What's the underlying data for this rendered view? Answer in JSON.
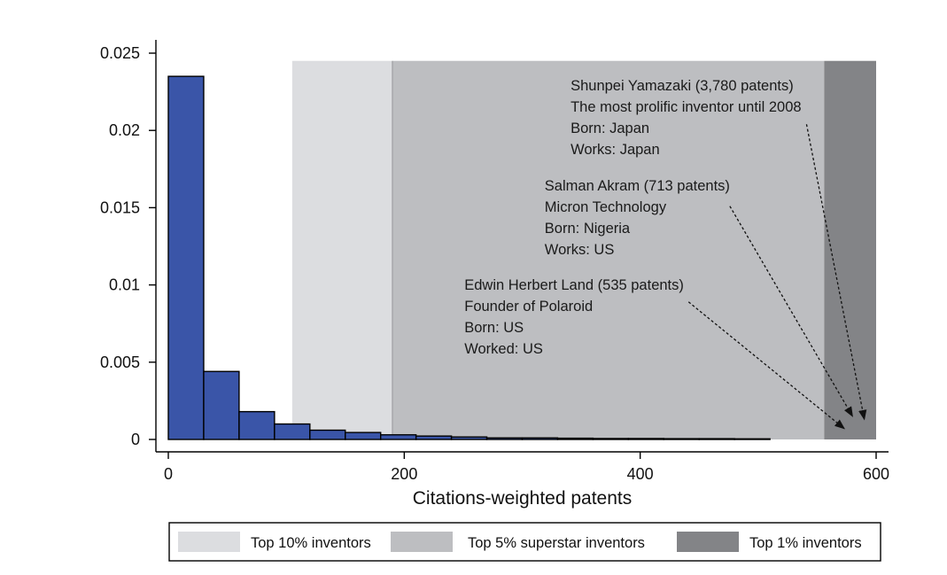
{
  "chart_data": {
    "type": "bar",
    "xlabel": "Citations-weighted patents",
    "ylabel": "",
    "xlim": [
      0,
      600
    ],
    "ylim": [
      0,
      0.025
    ],
    "x_ticks": [
      0,
      200,
      400,
      600
    ],
    "x_tick_labels": [
      "0",
      "200",
      "400",
      "600"
    ],
    "y_ticks": [
      0,
      0.005,
      0.01,
      0.015,
      0.02,
      0.025
    ],
    "y_tick_labels": [
      "0",
      "0.005",
      "0.01",
      "0.015",
      "0.02",
      "0.025"
    ],
    "bin_width": 30,
    "bins": [
      {
        "start": 0,
        "value": 0.0235
      },
      {
        "start": 30,
        "value": 0.0044
      },
      {
        "start": 60,
        "value": 0.0018
      },
      {
        "start": 90,
        "value": 0.001
      },
      {
        "start": 120,
        "value": 0.0006
      },
      {
        "start": 150,
        "value": 0.00045
      },
      {
        "start": 180,
        "value": 0.0003
      },
      {
        "start": 210,
        "value": 0.00022
      },
      {
        "start": 240,
        "value": 0.00016
      },
      {
        "start": 270,
        "value": 0.0001
      },
      {
        "start": 300,
        "value": 0.0001
      },
      {
        "start": 330,
        "value": 8e-05
      },
      {
        "start": 360,
        "value": 6e-05
      },
      {
        "start": 390,
        "value": 6e-05
      },
      {
        "start": 420,
        "value": 5e-05
      },
      {
        "start": 450,
        "value": 5e-05
      },
      {
        "start": 480,
        "value": 4e-05
      }
    ],
    "bar_color": "#3a55a8",
    "shaded_regions": [
      {
        "label": "Top 10% inventors",
        "x_start": 105,
        "x_end": 190,
        "color": "#dcdde0"
      },
      {
        "label": "Top 5% superstar inventors",
        "x_start": 190,
        "x_end": 556,
        "color": "#bdbec1"
      },
      {
        "label": "Top 1% inventors",
        "x_start": 556,
        "x_end": 600,
        "color": "#838487"
      }
    ],
    "shade_top": 0.0245,
    "annotations": [
      {
        "lines": [
          "Shunpei Yamazaki (3,780 patents)",
          "The most prolific inventor until 2008",
          "Born: Japan",
          "Works: Japan"
        ],
        "text_x": 341,
        "text_y": 0.0226,
        "arrow_from": [
          541,
          0.0204
        ],
        "arrow_to": [
          590,
          0.0013
        ]
      },
      {
        "lines": [
          "Salman Akram (713 patents)",
          "Micron Technology",
          "Born: Nigeria",
          "Works: US"
        ],
        "text_x": 319,
        "text_y": 0.0161,
        "arrow_from": [
          476,
          0.0151
        ],
        "arrow_to": [
          580,
          0.0015
        ]
      },
      {
        "lines": [
          "Edwin Herbert Land (535 patents)",
          "Founder of Polaroid",
          "Born: US",
          "Worked: US"
        ],
        "text_x": 251,
        "text_y": 0.0097,
        "arrow_from": [
          441,
          0.0089
        ],
        "arrow_to": [
          573,
          0.0007
        ]
      }
    ],
    "legend": {
      "placement": "bottom",
      "entries": [
        {
          "label": "Top 10% inventors",
          "color": "#dcdde0"
        },
        {
          "label": "Top 5% superstar inventors",
          "color": "#bdbec1"
        },
        {
          "label": "Top 1% inventors",
          "color": "#838487"
        }
      ]
    }
  }
}
